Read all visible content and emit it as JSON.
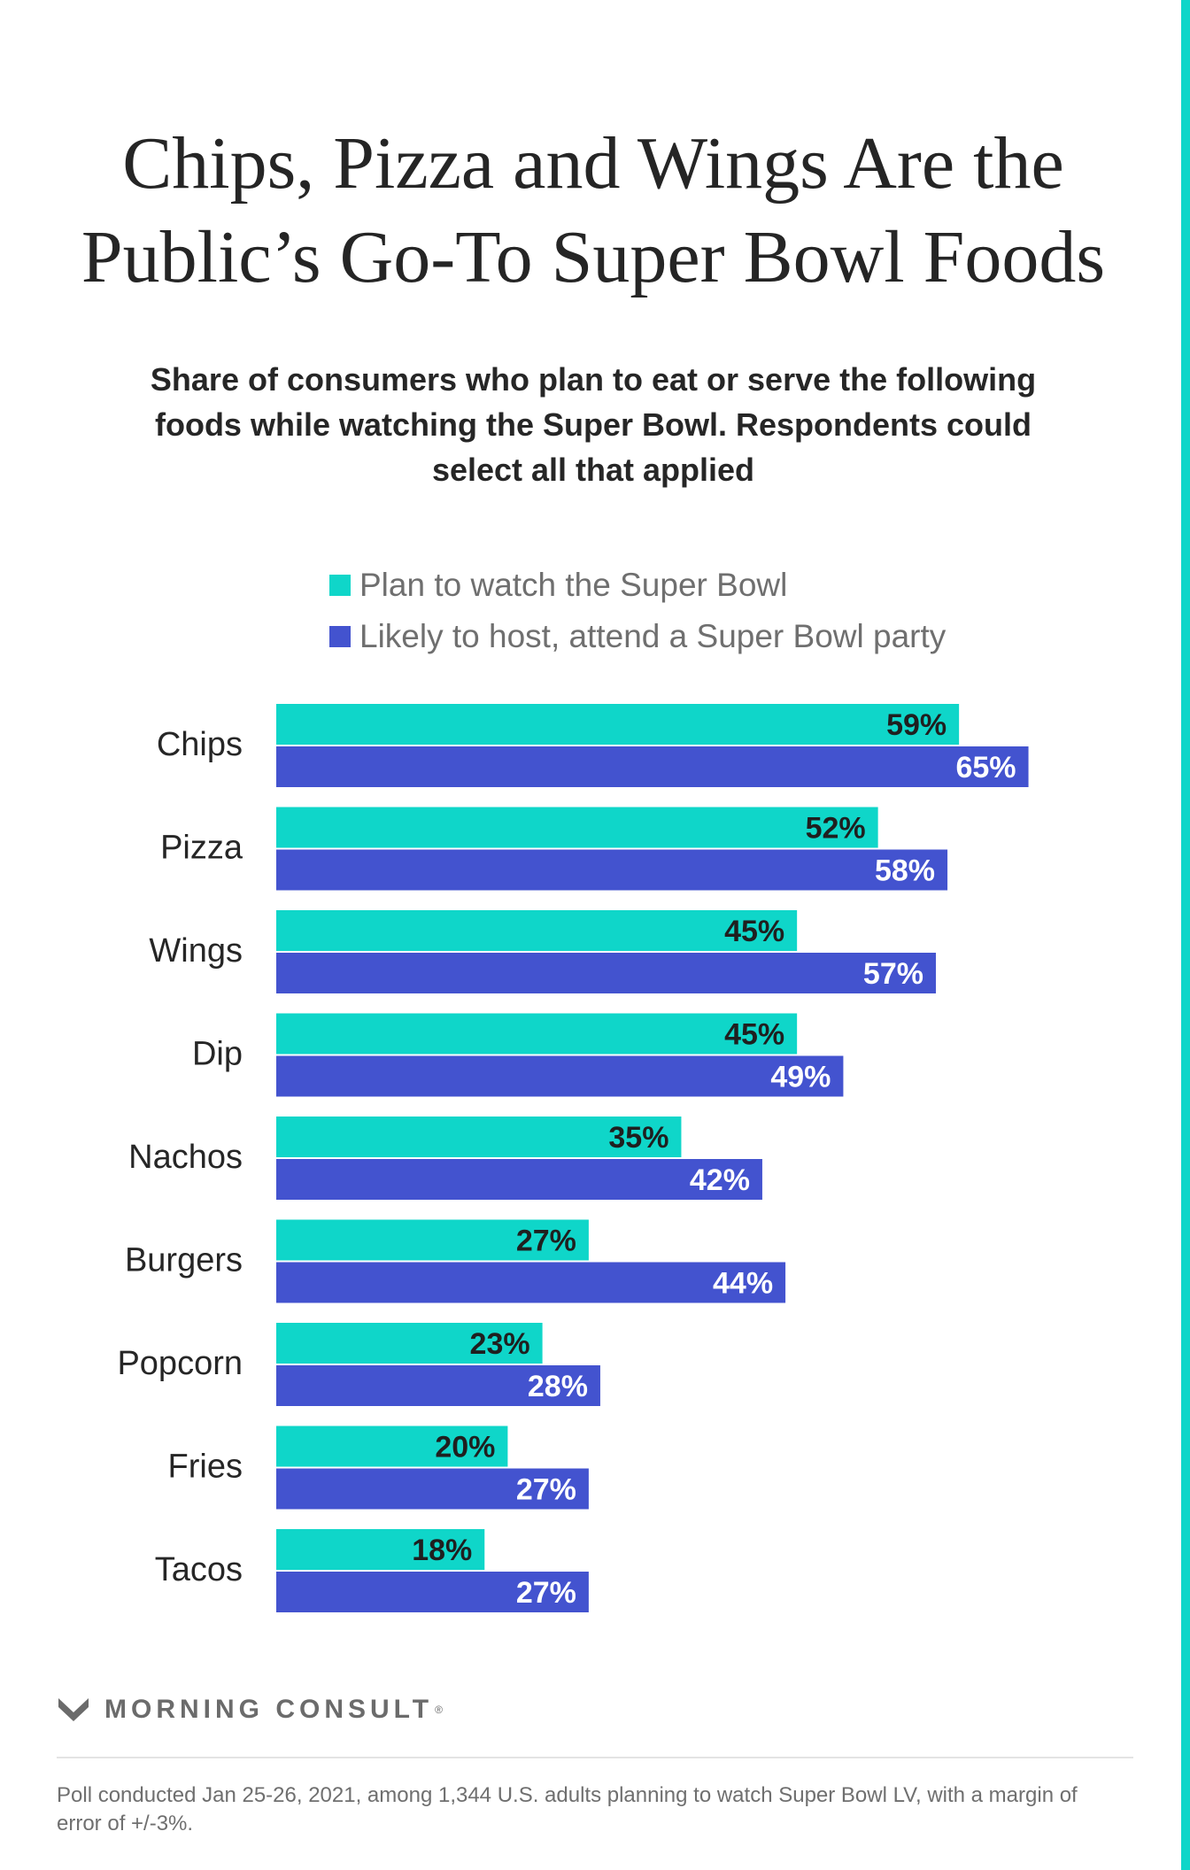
{
  "chart_data": {
    "type": "bar",
    "orientation": "horizontal",
    "title": "Chips, Pizza and Wings Are the Public’s Go-To Super Bowl Foods",
    "subtitle": "Share of consumers who plan to eat or serve the following foods while watching the Super Bowl. Respondents could select all that applied",
    "categories": [
      "Chips",
      "Pizza",
      "Wings",
      "Dip",
      "Nachos",
      "Burgers",
      "Popcorn",
      "Fries",
      "Tacos"
    ],
    "series": [
      {
        "name": "Plan to watch the Super Bowl",
        "color": "#0fd6c9",
        "label_color": "#1f1f1f",
        "values": [
          59,
          52,
          45,
          45,
          35,
          27,
          23,
          20,
          18
        ],
        "labels": [
          "59%",
          "52%",
          "45%",
          "45%",
          "35%",
          "27%",
          "23%",
          "20%",
          "18%"
        ]
      },
      {
        "name": "Likely to host, attend a Super Bowl party",
        "color": "#4353cf",
        "label_color": "#ffffff",
        "values": [
          65,
          58,
          57,
          49,
          42,
          44,
          28,
          27,
          27
        ],
        "labels": [
          "65%",
          "58%",
          "57%",
          "49%",
          "42%",
          "44%",
          "28%",
          "27%",
          "27%"
        ]
      }
    ],
    "xlim": [
      0,
      65
    ],
    "grid": false,
    "legend_position": "top",
    "value_labels": "inside-end"
  },
  "branding": {
    "name": "MORNING CONSULT",
    "mark": "®",
    "logo_icon": "morning-consult-logo-icon"
  },
  "footnote": "Poll conducted Jan 25-26, 2021, among 1,344 U.S. adults planning to watch Super Bowl LV, with a margin of error of +/-3%.",
  "colors": {
    "accent_stripe": "#0fd6c9"
  }
}
